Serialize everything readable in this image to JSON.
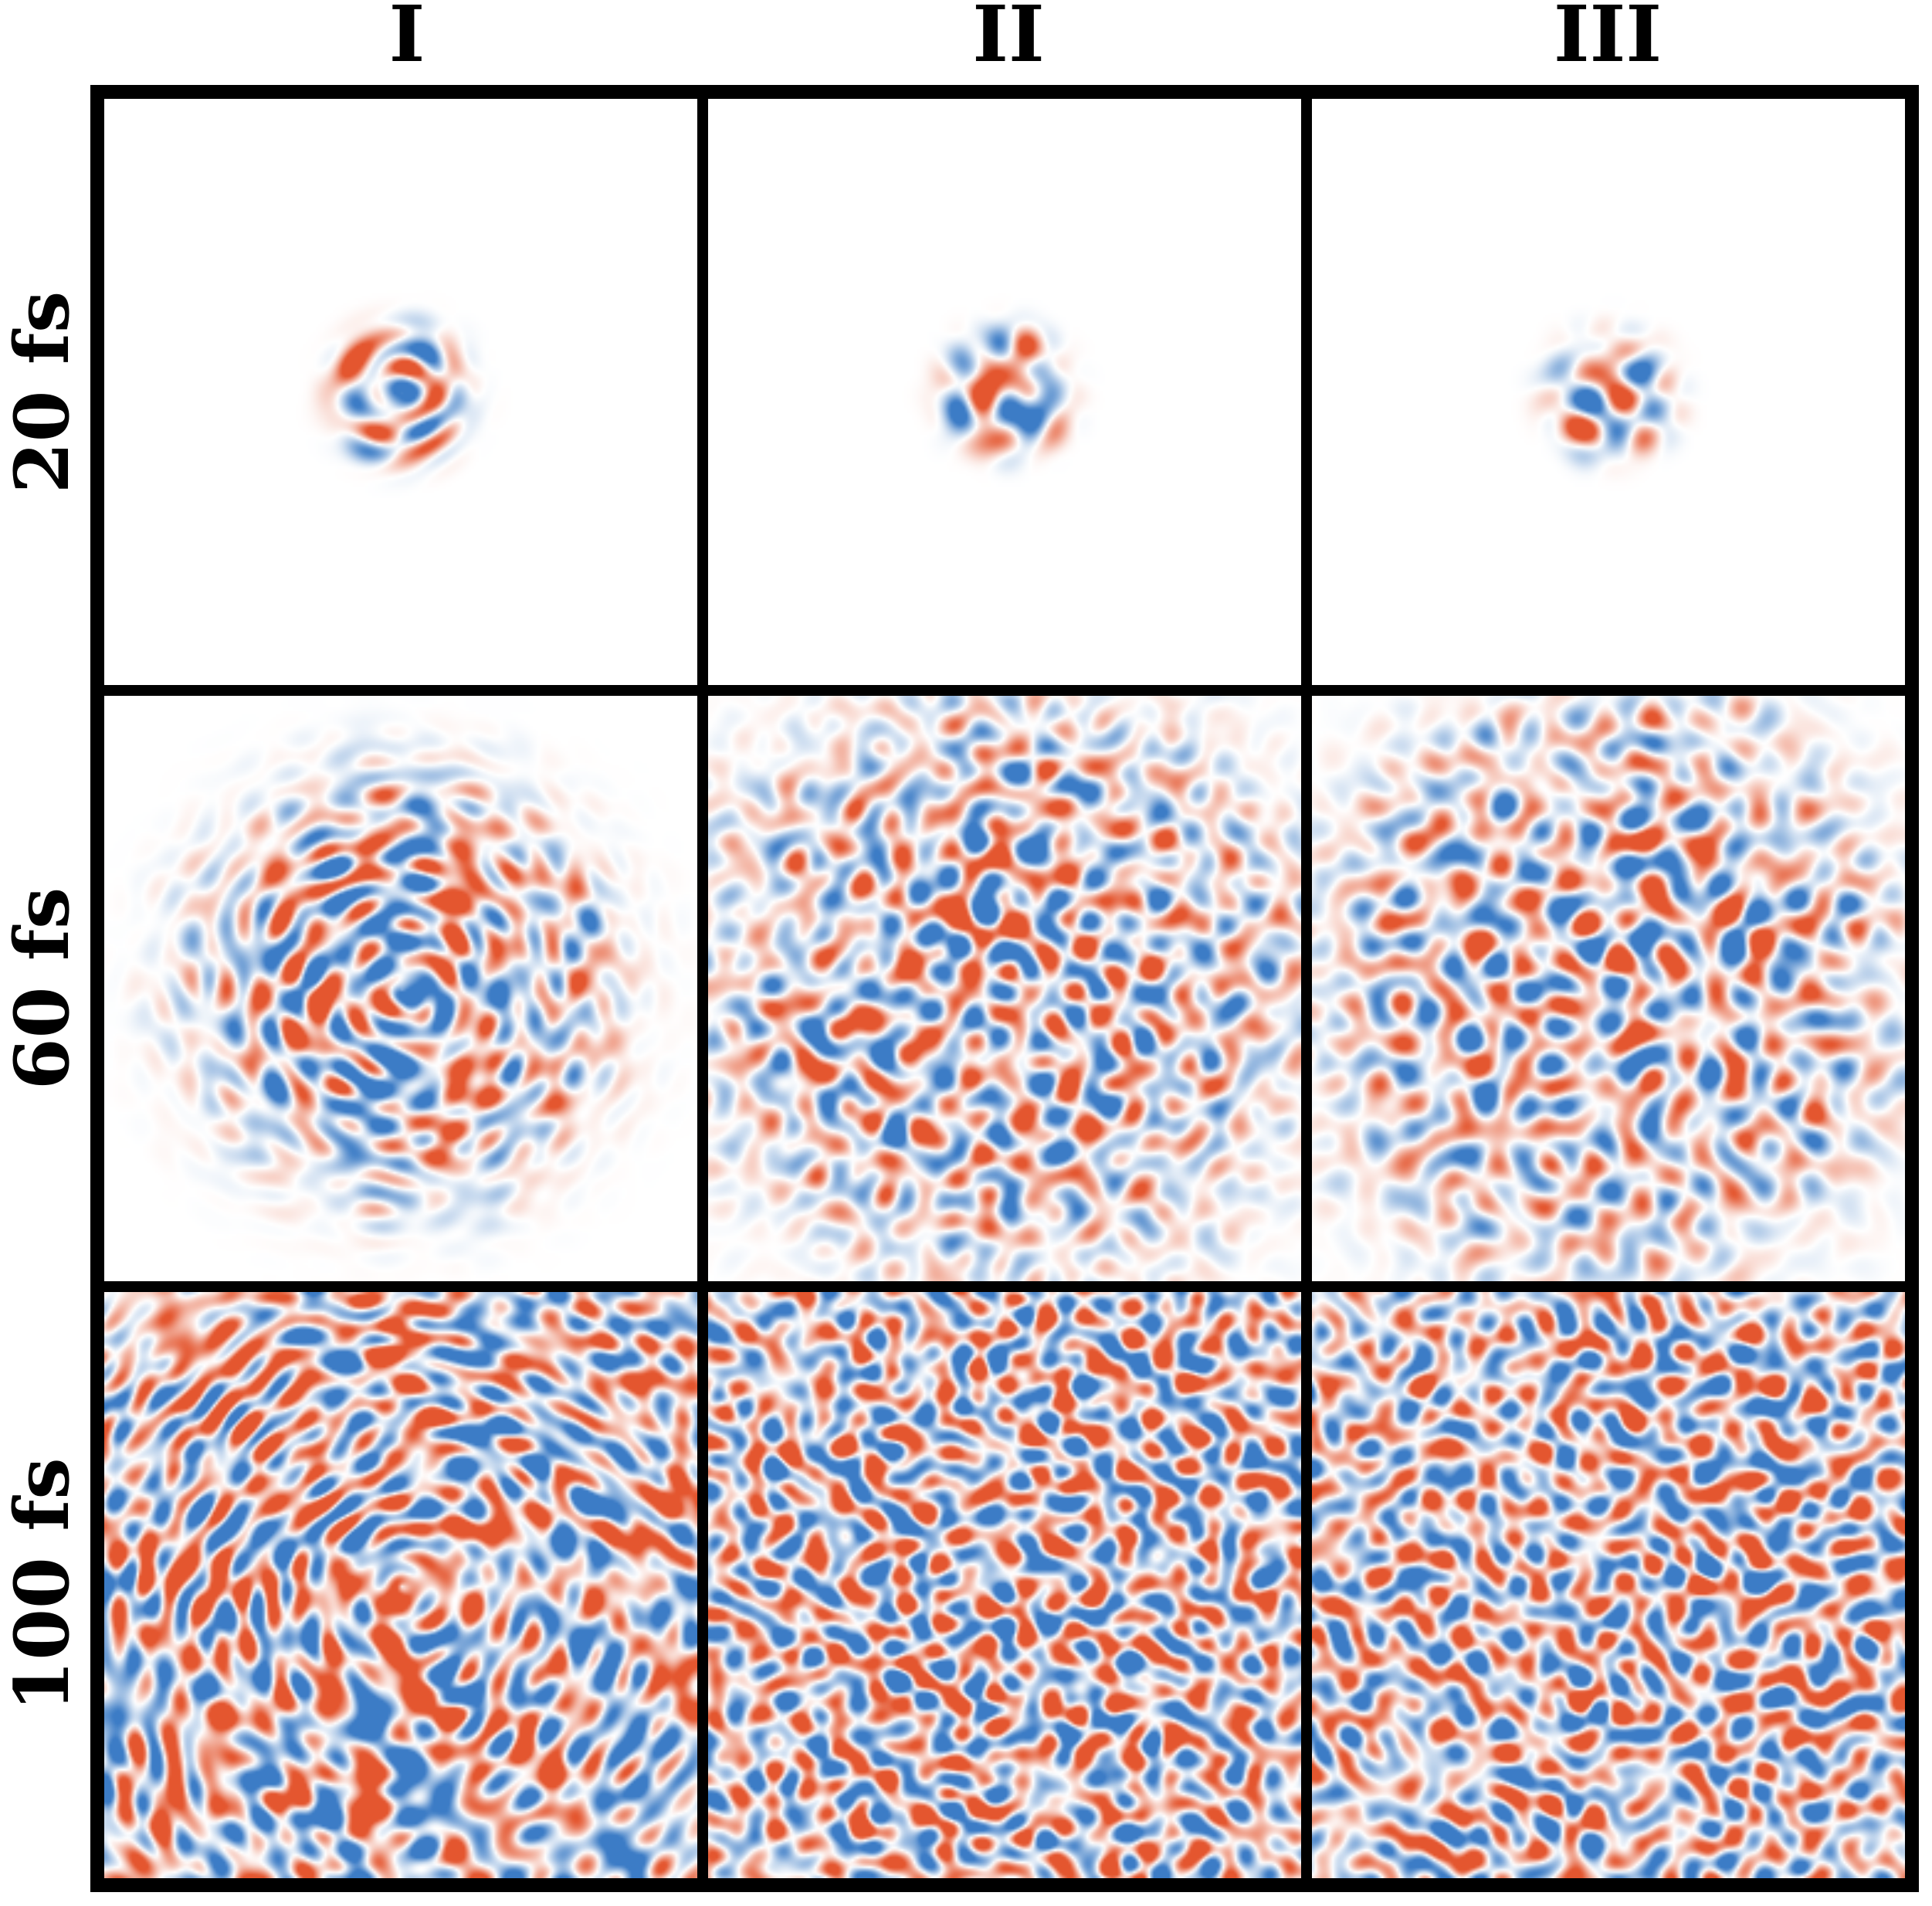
{
  "columns": [
    {
      "label": "I"
    },
    {
      "label": "II"
    },
    {
      "label": "III"
    }
  ],
  "rows": [
    {
      "label": "20 fs"
    },
    {
      "label": "60 fs"
    },
    {
      "label": "100 fs"
    }
  ],
  "colors": {
    "positive": "#e4562f",
    "negative": "#3c7cc6",
    "background": "#ffffff",
    "border": "#000000"
  }
}
